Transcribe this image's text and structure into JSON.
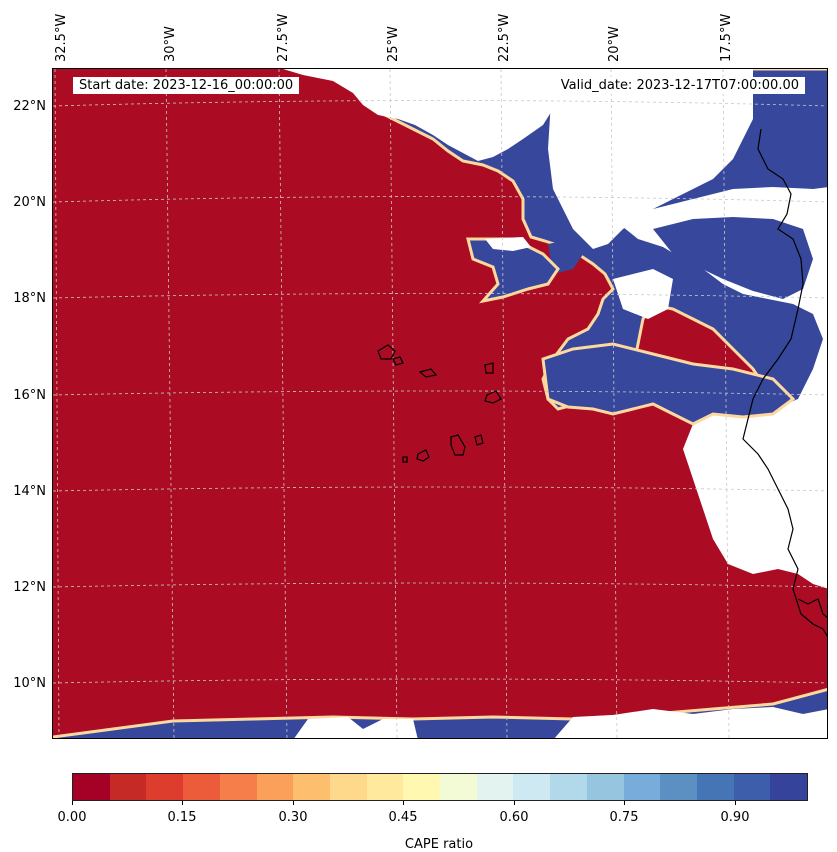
{
  "map": {
    "start_date": "Start date: 2023-12-16_00:00:00",
    "valid_date": "Valid_date: 2023-12-17T07:00:00.00",
    "lon_labels": [
      "32.5°W",
      "30°W",
      "27.5°W",
      "25°W",
      "22.5°W",
      "20°W",
      "17.5°W"
    ],
    "lat_labels": [
      "22°N",
      "20°N",
      "18°N",
      "16°N",
      "14°N",
      "12°N",
      "10°N"
    ],
    "colors": {
      "low": "#ab0c24",
      "high": "#37479c",
      "coast": "#000000",
      "grid": "#c8c8c8"
    }
  },
  "colorbar": {
    "label": "CAPE ratio",
    "ticks": [
      "0.00",
      "0.15",
      "0.30",
      "0.45",
      "0.60",
      "0.75",
      "0.90"
    ],
    "colors": [
      "#a50026",
      "#c52a27",
      "#dd3d2d",
      "#ec5c3b",
      "#f67e4b",
      "#fba05b",
      "#fdbe6e",
      "#fed98b",
      "#fee99d",
      "#fff8b1",
      "#f2fad6",
      "#e3f3f0",
      "#cfe9f2",
      "#b2d9e9",
      "#96c6df",
      "#78addb",
      "#5c90c2",
      "#4575b4",
      "#3d5fab",
      "#35449a"
    ]
  }
}
